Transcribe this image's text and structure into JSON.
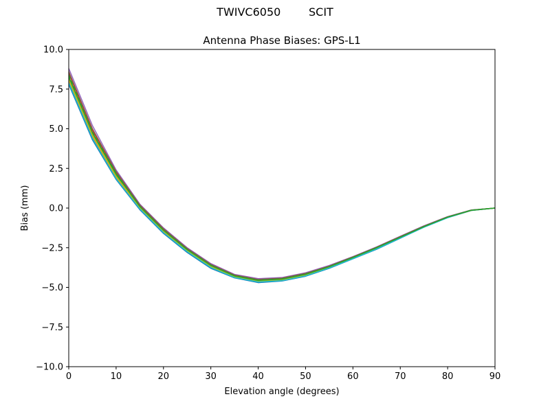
{
  "figure": {
    "suptitle": "TWIVC6050        SCIT"
  },
  "chart_data": {
    "type": "line",
    "title": "Antenna Phase Biases: GPS-L1",
    "xlabel": "Elevation angle (degrees)",
    "ylabel": "Bias (mm)",
    "xlim": [
      0,
      90
    ],
    "ylim": [
      -10,
      10
    ],
    "xticks": [
      0,
      10,
      20,
      30,
      40,
      50,
      60,
      70,
      80,
      90
    ],
    "yticks": [
      -10,
      -7.5,
      -5,
      -2.5,
      0,
      2.5,
      5,
      7.5,
      10
    ],
    "ytick_labels": [
      "−10.0",
      "−7.5",
      "−5.0",
      "−2.5",
      "0.0",
      "2.5",
      "5.0",
      "7.5",
      "10.0"
    ],
    "grid": false,
    "x": [
      0,
      5,
      10,
      15,
      20,
      25,
      30,
      35,
      40,
      45,
      50,
      55,
      60,
      65,
      70,
      75,
      80,
      85,
      90
    ],
    "series": [
      {
        "color": "#1f77b4",
        "values": [
          7.8,
          4.3,
          1.8,
          -0.1,
          -1.6,
          -2.8,
          -3.8,
          -4.4,
          -4.7,
          -4.6,
          -4.3,
          -3.8,
          -3.2,
          -2.6,
          -1.9,
          -1.2,
          -0.6,
          -0.15,
          0.0
        ]
      },
      {
        "color": "#ff7f0e",
        "values": [
          8.0,
          4.5,
          1.95,
          0.0,
          -1.5,
          -2.7,
          -3.7,
          -4.35,
          -4.62,
          -4.55,
          -4.25,
          -3.75,
          -3.17,
          -2.55,
          -1.87,
          -1.2,
          -0.6,
          -0.15,
          0.0
        ]
      },
      {
        "color": "#2ca02c",
        "values": [
          8.2,
          4.7,
          2.1,
          0.1,
          -1.4,
          -2.65,
          -3.65,
          -4.3,
          -4.58,
          -4.5,
          -4.2,
          -3.72,
          -3.14,
          -2.52,
          -1.85,
          -1.18,
          -0.58,
          -0.14,
          0.0
        ]
      },
      {
        "color": "#d62728",
        "values": [
          8.5,
          4.9,
          2.25,
          0.15,
          -1.35,
          -2.6,
          -3.6,
          -4.25,
          -4.52,
          -4.45,
          -4.15,
          -3.68,
          -3.1,
          -2.48,
          -1.82,
          -1.15,
          -0.56,
          -0.13,
          0.0
        ]
      },
      {
        "color": "#9467bd",
        "values": [
          8.8,
          5.2,
          2.4,
          0.25,
          -1.25,
          -2.5,
          -3.5,
          -4.18,
          -4.45,
          -4.38,
          -4.08,
          -3.62,
          -3.06,
          -2.45,
          -1.78,
          -1.12,
          -0.54,
          -0.12,
          0.0
        ]
      },
      {
        "color": "#8c564b",
        "values": [
          8.6,
          5.0,
          2.3,
          0.2,
          -1.3,
          -2.55,
          -3.55,
          -4.22,
          -4.5,
          -4.42,
          -4.12,
          -3.66,
          -3.08,
          -2.47,
          -1.8,
          -1.14,
          -0.55,
          -0.13,
          0.0
        ]
      },
      {
        "color": "#bcbd22",
        "values": [
          8.1,
          4.6,
          2.0,
          0.05,
          -1.45,
          -2.68,
          -3.68,
          -4.33,
          -4.6,
          -4.52,
          -4.22,
          -3.74,
          -3.16,
          -2.54,
          -1.86,
          -1.19,
          -0.59,
          -0.14,
          0.0
        ]
      },
      {
        "color": "#17becf",
        "values": [
          7.9,
          4.4,
          1.85,
          -0.05,
          -1.55,
          -2.75,
          -3.75,
          -4.38,
          -4.66,
          -4.58,
          -4.28,
          -3.78,
          -3.19,
          -2.58,
          -1.89,
          -1.21,
          -0.61,
          -0.15,
          0.0
        ]
      },
      {
        "color": "#2ca02c",
        "values": [
          8.3,
          4.75,
          2.15,
          0.1,
          -1.4,
          -2.62,
          -3.62,
          -4.28,
          -4.56,
          -4.48,
          -4.18,
          -3.7,
          -3.12,
          -2.5,
          -1.84,
          -1.17,
          -0.57,
          -0.14,
          0.0
        ]
      },
      {
        "color": "#2ca02c",
        "dashed": true,
        "values": [
          8.4,
          4.8,
          2.2,
          0.12,
          -1.38,
          -2.6,
          -3.6,
          -4.26,
          -4.54,
          -4.46,
          -4.16,
          -3.69,
          -3.11,
          -2.49,
          -1.83,
          -1.16,
          -0.57,
          -0.13,
          0.0
        ]
      }
    ]
  }
}
